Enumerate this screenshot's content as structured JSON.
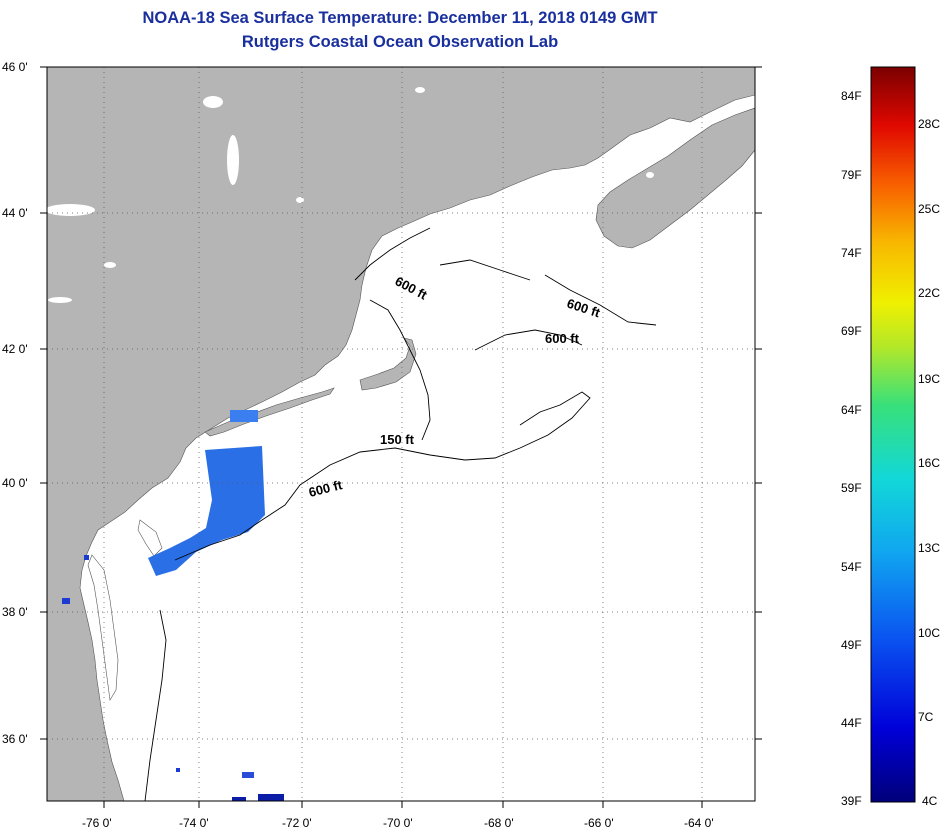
{
  "title": "NOAA-18 Sea Surface Temperature:  December 11, 2018 0149 GMT",
  "subtitle": "Rutgers Coastal Ocean Observation Lab",
  "axes": {
    "lat_labels": [
      "46 0'",
      "44 0'",
      "42 0'",
      "40 0'",
      "38 0'",
      "36 0'"
    ],
    "lon_labels": [
      "-76 0'",
      "-74 0'",
      "-72 0'",
      "-70 0'",
      "-68 0'",
      "-66 0'",
      "-64 0'"
    ]
  },
  "contours": [
    "600 ft",
    "600 ft",
    "600 ft",
    "150 ft",
    "600 ft"
  ],
  "colorbar": {
    "fahrenheit": [
      "84F",
      "79F",
      "74F",
      "69F",
      "64F",
      "59F",
      "54F",
      "49F",
      "44F",
      "39F"
    ],
    "celsius": [
      "28C",
      "25C",
      "22C",
      "19C",
      "16C",
      "13C",
      "10C",
      "7C",
      "4C"
    ]
  },
  "colors": {
    "title": "#1a2f9e",
    "land": "#b5b5b5",
    "ocean": "#ffffff",
    "sst_patch": "#2a70e8"
  }
}
